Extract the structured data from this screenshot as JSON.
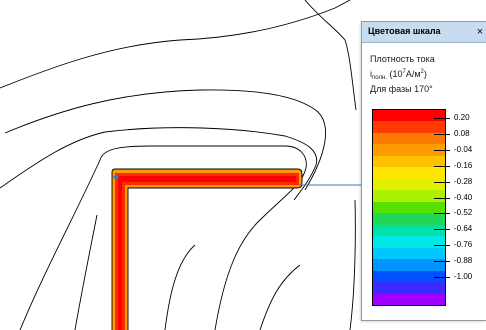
{
  "legend_window": {
    "title": "Цветовая шкала",
    "close_glyph": "×",
    "caption_line1": "Плотность тока",
    "quantity_symbol": "i",
    "quantity_subscript": "полн.",
    "unit_open": "(10",
    "unit_exponent": "7",
    "unit_middle": "A/м",
    "unit_area_exponent": "2",
    "unit_close": ")",
    "caption_line3": "Для фазы 170°"
  },
  "colorbar": {
    "bands": [
      "#ff0000",
      "#ff3a00",
      "#ff7a00",
      "#ff9a00",
      "#ffc000",
      "#ffe600",
      "#e2f000",
      "#aaf000",
      "#55e000",
      "#20d858",
      "#00e0a8",
      "#00e8e8",
      "#00c8ff",
      "#0094ff",
      "#0050ff",
      "#3a2aff",
      "#a000ff"
    ],
    "tick_labels": [
      "0.20",
      "0.08",
      "-0.04",
      "-0.16",
      "-0.28",
      "-0.40",
      "-0.52",
      "-0.64",
      "-0.76",
      "-0.88",
      "-1.00"
    ]
  },
  "field_colors": {
    "outer": "#ff9a00",
    "inner": "#ff2a00",
    "core": "#ff0000",
    "contour": "#000000",
    "leader": "#3a78c8"
  }
}
